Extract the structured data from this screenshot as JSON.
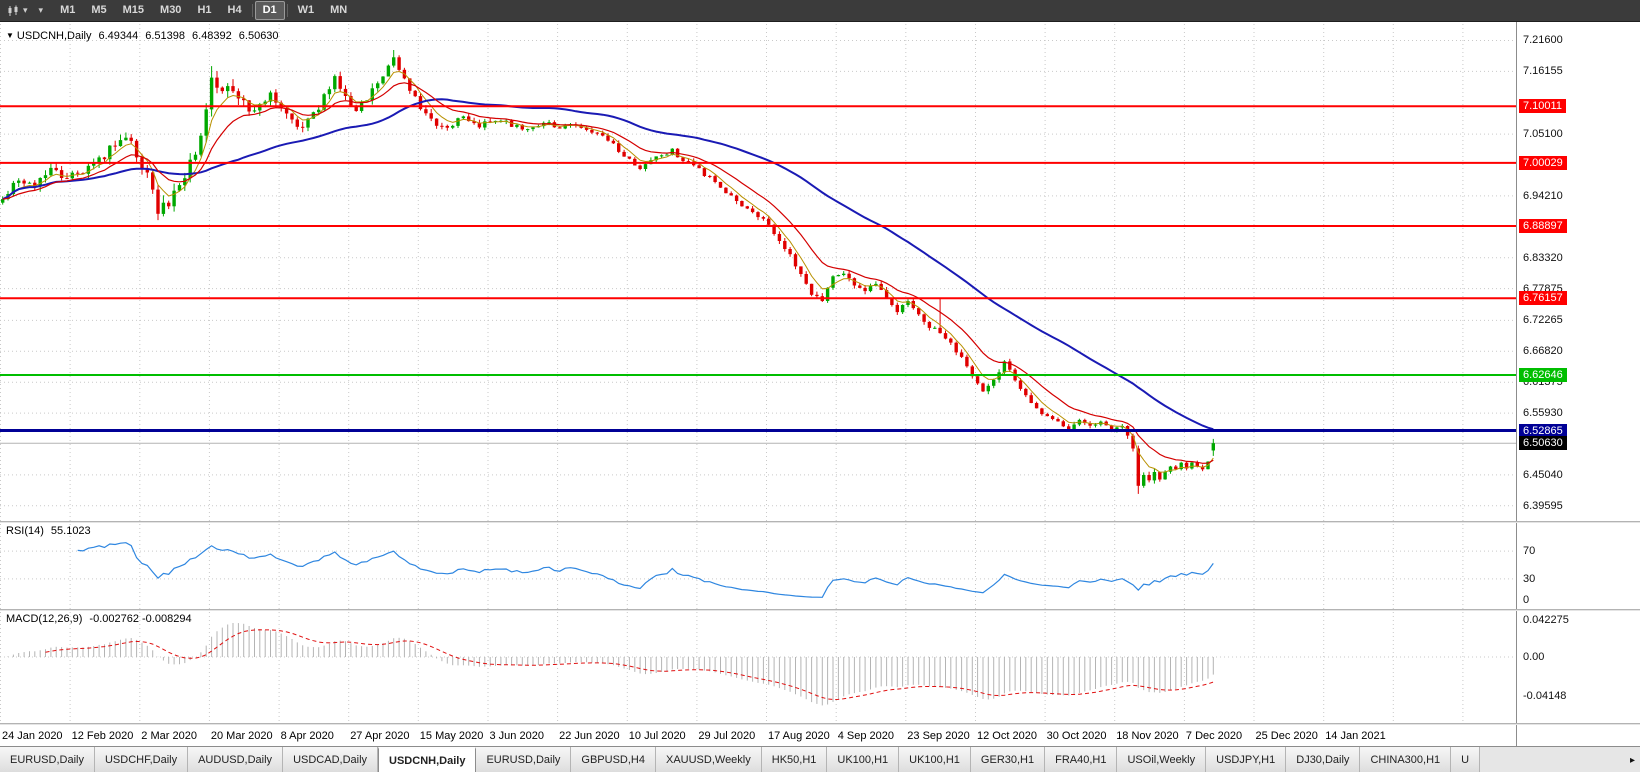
{
  "toolbar": {
    "chart_type_icon": "candlestick-chart",
    "dropdown_arrow": "▾",
    "timeframes": [
      "M1",
      "M5",
      "M15",
      "M30",
      "H1",
      "H4",
      "D1",
      "W1",
      "MN"
    ],
    "active_timeframe": "D1",
    "separators_after": [
      "H4",
      "D1"
    ]
  },
  "chart_header": {
    "arrow": "▼",
    "symbol": "USDCNH,Daily",
    "open": "6.49344",
    "high": "6.51398",
    "low": "6.48392",
    "close": "6.50630"
  },
  "indicators": {
    "rsi": {
      "name": "RSI(14)",
      "value": "55.1023",
      "scale_labels": [
        "70",
        "30",
        "0"
      ],
      "line_color": "#2e86e0"
    },
    "macd": {
      "name": "MACD(12,26,9)",
      "values": "-0.002762 -0.008294",
      "scale_labels": [
        "0.042275",
        "0.00",
        "-0.04148"
      ],
      "histogram_color": "#b4b4b4",
      "signal_color": "#e01010"
    }
  },
  "tabs": {
    "items": [
      "EURUSD,Daily",
      "USDCHF,Daily",
      "AUDUSD,Daily",
      "USDCAD,Daily",
      "USDCNH,Daily",
      "EURUSD,Daily",
      "GBPUSD,H4",
      "XAUUSD,Weekly",
      "HK50,H1",
      "UK100,H1",
      "UK100,H1",
      "GER30,H1",
      "FRA40,H1",
      "USOil,Weekly",
      "USDJPY,H1",
      "DJ30,Daily",
      "CHINA300,H1",
      "U"
    ],
    "active_index": 4,
    "scroll_right_arrow": "▸"
  },
  "chart_data": {
    "type": "candlestick",
    "symbol": "USDCNH",
    "timeframe": "Daily",
    "title": "USDCNH,Daily",
    "last_ohlc": {
      "open": 6.49344,
      "high": 6.51398,
      "low": 6.48392,
      "close": 6.5063
    },
    "price_axis": {
      "max": 7.245,
      "min": 6.371
    },
    "price_ticks": [
      "7.21600",
      "7.16155",
      "7.05100",
      "6.94210",
      "6.83320",
      "6.77875",
      "6.72265",
      "6.66820",
      "6.61375",
      "6.55930",
      "6.45040",
      "6.39595"
    ],
    "levels": [
      {
        "label": "7.10011",
        "price": 7.10011,
        "color": "#ff0000",
        "width": 2,
        "kind": "resistance"
      },
      {
        "label": "7.00029",
        "price": 7.00029,
        "color": "#ff0000",
        "width": 2,
        "kind": "resistance"
      },
      {
        "label": "6.88897",
        "price": 6.88897,
        "color": "#ff0000",
        "width": 2,
        "kind": "resistance"
      },
      {
        "label": "6.76157",
        "price": 6.76157,
        "color": "#ff0000",
        "width": 2,
        "kind": "resistance"
      },
      {
        "label": "6.62646",
        "price": 6.62646,
        "color": "#00be00",
        "width": 2,
        "kind": "support"
      },
      {
        "label": "6.52865",
        "price": 6.52865,
        "color": "#000096",
        "width": 3,
        "kind": "resistance"
      },
      {
        "label": "6.50630",
        "price": 6.5063,
        "color": "#000000",
        "width": 1,
        "kind": "current-price",
        "current": true
      }
    ],
    "time_labels": [
      "24 Jan 2020",
      "12 Feb 2020",
      "2 Mar 2020",
      "20 Mar 2020",
      "8 Apr 2020",
      "27 Apr 2020",
      "15 May 2020",
      "3 Jun 2020",
      "22 Jun 2020",
      "10 Jul 2020",
      "29 Jul 2020",
      "17 Aug 2020",
      "4 Sep 2020",
      "23 Sep 2020",
      "12 Oct 2020",
      "30 Oct 2020",
      "18 Nov 2020",
      "7 Dec 2020",
      "25 Dec 2020",
      "14 Jan 2021"
    ],
    "label_every": 13,
    "bar_count": 227,
    "total_slots": 283,
    "close_anchors": [
      [
        0,
        6.93
      ],
      [
        3,
        6.972
      ],
      [
        6,
        6.964
      ],
      [
        9,
        6.986
      ],
      [
        12,
        6.977
      ],
      [
        15,
        6.983
      ],
      [
        18,
        7.006
      ],
      [
        21,
        7.034
      ],
      [
        23,
        7.043
      ],
      [
        25,
        7.018
      ],
      [
        27,
        6.974
      ],
      [
        29,
        6.914
      ],
      [
        31,
        6.927
      ],
      [
        33,
        6.958
      ],
      [
        35,
        6.996
      ],
      [
        37,
        7.048
      ],
      [
        39,
        7.158
      ],
      [
        40,
        7.124
      ],
      [
        42,
        7.138
      ],
      [
        44,
        7.12
      ],
      [
        46,
        7.088
      ],
      [
        48,
        7.104
      ],
      [
        50,
        7.118
      ],
      [
        52,
        7.092
      ],
      [
        54,
        7.077
      ],
      [
        56,
        7.061
      ],
      [
        58,
        7.084
      ],
      [
        60,
        7.117
      ],
      [
        62,
        7.151
      ],
      [
        64,
        7.118
      ],
      [
        66,
        7.094
      ],
      [
        68,
        7.117
      ],
      [
        70,
        7.139
      ],
      [
        72,
        7.17
      ],
      [
        73,
        7.191
      ],
      [
        74,
        7.164
      ],
      [
        76,
        7.129
      ],
      [
        78,
        7.101
      ],
      [
        80,
        7.077
      ],
      [
        83,
        7.061
      ],
      [
        86,
        7.081
      ],
      [
        89,
        7.067
      ],
      [
        92,
        7.079
      ],
      [
        95,
        7.067
      ],
      [
        98,
        7.057
      ],
      [
        101,
        7.071
      ],
      [
        104,
        7.061
      ],
      [
        107,
        7.069
      ],
      [
        110,
        7.057
      ],
      [
        113,
        7.041
      ],
      [
        116,
        7.014
      ],
      [
        119,
        6.991
      ],
      [
        122,
        7.011
      ],
      [
        125,
        7.021
      ],
      [
        128,
        7.001
      ],
      [
        131,
        6.981
      ],
      [
        134,
        6.957
      ],
      [
        137,
        6.937
      ],
      [
        140,
        6.911
      ],
      [
        143,
        6.891
      ],
      [
        145,
        6.867
      ],
      [
        147,
        6.837
      ],
      [
        149,
        6.801
      ],
      [
        151,
        6.771
      ],
      [
        153,
        6.761
      ],
      [
        155,
        6.797
      ],
      [
        157,
        6.807
      ],
      [
        159,
        6.787
      ],
      [
        161,
        6.774
      ],
      [
        163,
        6.787
      ],
      [
        165,
        6.757
      ],
      [
        167,
        6.741
      ],
      [
        169,
        6.755
      ],
      [
        171,
        6.731
      ],
      [
        173,
        6.711
      ],
      [
        175,
        6.704
      ],
      [
        177,
        6.681
      ],
      [
        179,
        6.659
      ],
      [
        181,
        6.624
      ],
      [
        183,
        6.601
      ],
      [
        185,
        6.621
      ],
      [
        187,
        6.647
      ],
      [
        189,
        6.617
      ],
      [
        191,
        6.587
      ],
      [
        193,
        6.569
      ],
      [
        195,
        6.551
      ],
      [
        197,
        6.541
      ],
      [
        199,
        6.531
      ],
      [
        201,
        6.544
      ],
      [
        203,
        6.535
      ],
      [
        205,
        6.541
      ],
      [
        207,
        6.527
      ],
      [
        209,
        6.535
      ],
      [
        210,
        6.519
      ],
      [
        211,
        6.497
      ],
      [
        212,
        6.431
      ],
      [
        213,
        6.447
      ],
      [
        214,
        6.439
      ],
      [
        215,
        6.457
      ],
      [
        216,
        6.447
      ],
      [
        217,
        6.455
      ],
      [
        218,
        6.465
      ],
      [
        219,
        6.457
      ],
      [
        220,
        6.469
      ],
      [
        221,
        6.462
      ],
      [
        222,
        6.473
      ],
      [
        223,
        6.467
      ],
      [
        224,
        6.461
      ],
      [
        225,
        6.477
      ],
      [
        226,
        6.5063
      ]
    ],
    "volatility_anchors": [
      [
        0,
        0.016
      ],
      [
        25,
        0.02
      ],
      [
        30,
        0.024
      ],
      [
        38,
        0.03
      ],
      [
        45,
        0.02
      ],
      [
        60,
        0.016
      ],
      [
        75,
        0.016
      ],
      [
        90,
        0.011
      ],
      [
        110,
        0.009
      ],
      [
        130,
        0.01
      ],
      [
        150,
        0.012
      ],
      [
        170,
        0.01
      ],
      [
        190,
        0.01
      ],
      [
        205,
        0.008
      ],
      [
        212,
        0.013
      ],
      [
        220,
        0.008
      ],
      [
        226,
        0.007
      ]
    ],
    "spikes": [
      {
        "bar": 39,
        "high_extra": 0.006
      },
      {
        "bar": 73,
        "high_extra": 0.006
      },
      {
        "bar": 175,
        "high_extra": 0.048
      },
      {
        "bar": 29,
        "low_extra": 0.008
      },
      {
        "bar": 212,
        "low_extra": 0.014
      }
    ],
    "moving_averages": [
      {
        "type": "EMA",
        "period": 5,
        "role": "fast"
      },
      {
        "type": "EMA",
        "period": 13,
        "role": "mid"
      },
      {
        "type": "SMA",
        "period": 45,
        "role": "slow"
      }
    ],
    "colors": {
      "up": "#00a800",
      "down": "#e00000",
      "ma_fast": "#b89000",
      "ma_mid": "#d40000",
      "ma_slow": "#1a1ab4",
      "grid": "#c9c9c9",
      "current_line": "#b4b4b4",
      "rsi_line": "#2e86e0",
      "macd_hist": "#b4b4b4",
      "macd_signal": "#e01010"
    }
  }
}
